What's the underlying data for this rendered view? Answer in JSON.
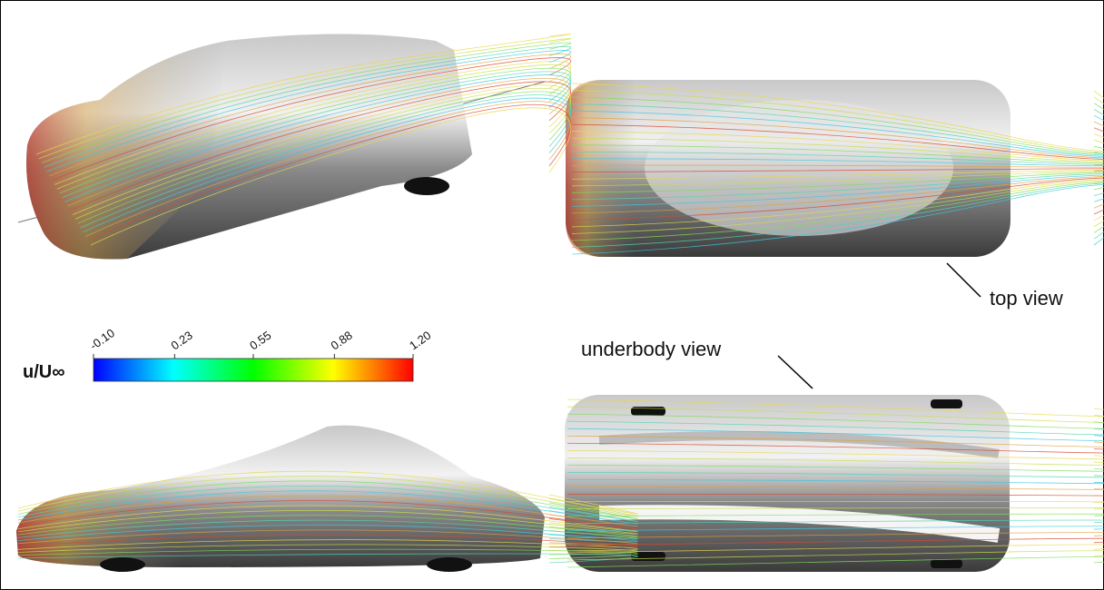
{
  "colorbar": {
    "label": "u/U∞",
    "lim": [
      -0.1,
      1.2
    ],
    "ticks": [
      {
        "value": -0.1,
        "label": "-0.10"
      },
      0.23,
      0.55,
      0.88,
      {
        "value": 1.2,
        "label": "1.20"
      }
    ],
    "colors": [
      "#0000ff",
      "#00ffff",
      "#00ff00",
      "#ffff00",
      "#ff0000"
    ]
  },
  "annotations": {
    "top": "top view",
    "underbody": "underbody view"
  }
}
